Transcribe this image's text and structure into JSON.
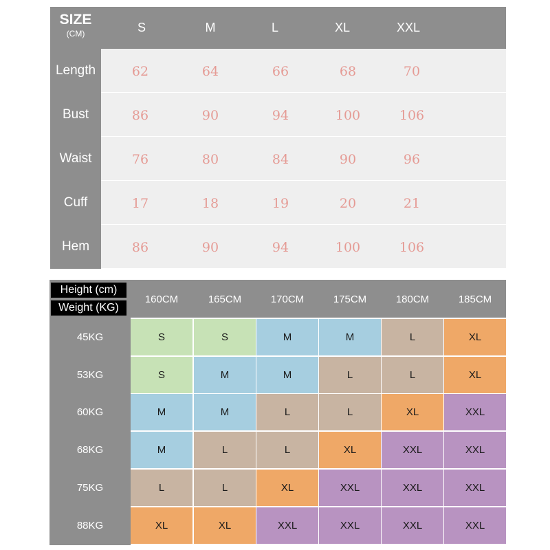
{
  "size_chart": {
    "title": "SIZE",
    "unit": "(CM)",
    "columns": [
      "S",
      "M",
      "L",
      "XL",
      "XXL"
    ],
    "rows": [
      {
        "label": "Length",
        "values": [
          "62",
          "64",
          "66",
          "68",
          "70"
        ]
      },
      {
        "label": "Bust",
        "values": [
          "86",
          "90",
          "94",
          "100",
          "106"
        ]
      },
      {
        "label": "Waist",
        "values": [
          "76",
          "80",
          "84",
          "90",
          "96"
        ]
      },
      {
        "label": "Cuff",
        "values": [
          "17",
          "18",
          "19",
          "20",
          "21"
        ]
      },
      {
        "label": "Hem",
        "values": [
          "86",
          "90",
          "94",
          "100",
          "106"
        ]
      }
    ]
  },
  "fit_chart": {
    "height_label": "Height (cm)",
    "weight_label": "Weight (KG)",
    "columns": [
      "160CM",
      "165CM",
      "170CM",
      "175CM",
      "180CM",
      "185CM"
    ],
    "rows": [
      {
        "label": "45KG",
        "sizes": [
          "S",
          "S",
          "M",
          "M",
          "L",
          "XL"
        ]
      },
      {
        "label": "53KG",
        "sizes": [
          "S",
          "M",
          "M",
          "L",
          "L",
          "XL"
        ]
      },
      {
        "label": "60KG",
        "sizes": [
          "M",
          "M",
          "L",
          "L",
          "XL",
          "XXL"
        ]
      },
      {
        "label": "68KG",
        "sizes": [
          "M",
          "L",
          "L",
          "XL",
          "XXL",
          "XXL"
        ]
      },
      {
        "label": "75KG",
        "sizes": [
          "L",
          "L",
          "XL",
          "XXL",
          "XXL",
          "XXL"
        ]
      },
      {
        "label": "88KG",
        "sizes": [
          "XL",
          "XL",
          "XXL",
          "XXL",
          "XXL",
          "XXL"
        ]
      }
    ],
    "size_colors": {
      "S": "#c7e2b6",
      "M": "#a6cee0",
      "L": "#c8b4a2",
      "XL": "#efa867",
      "XXL": "#b893c1"
    }
  }
}
